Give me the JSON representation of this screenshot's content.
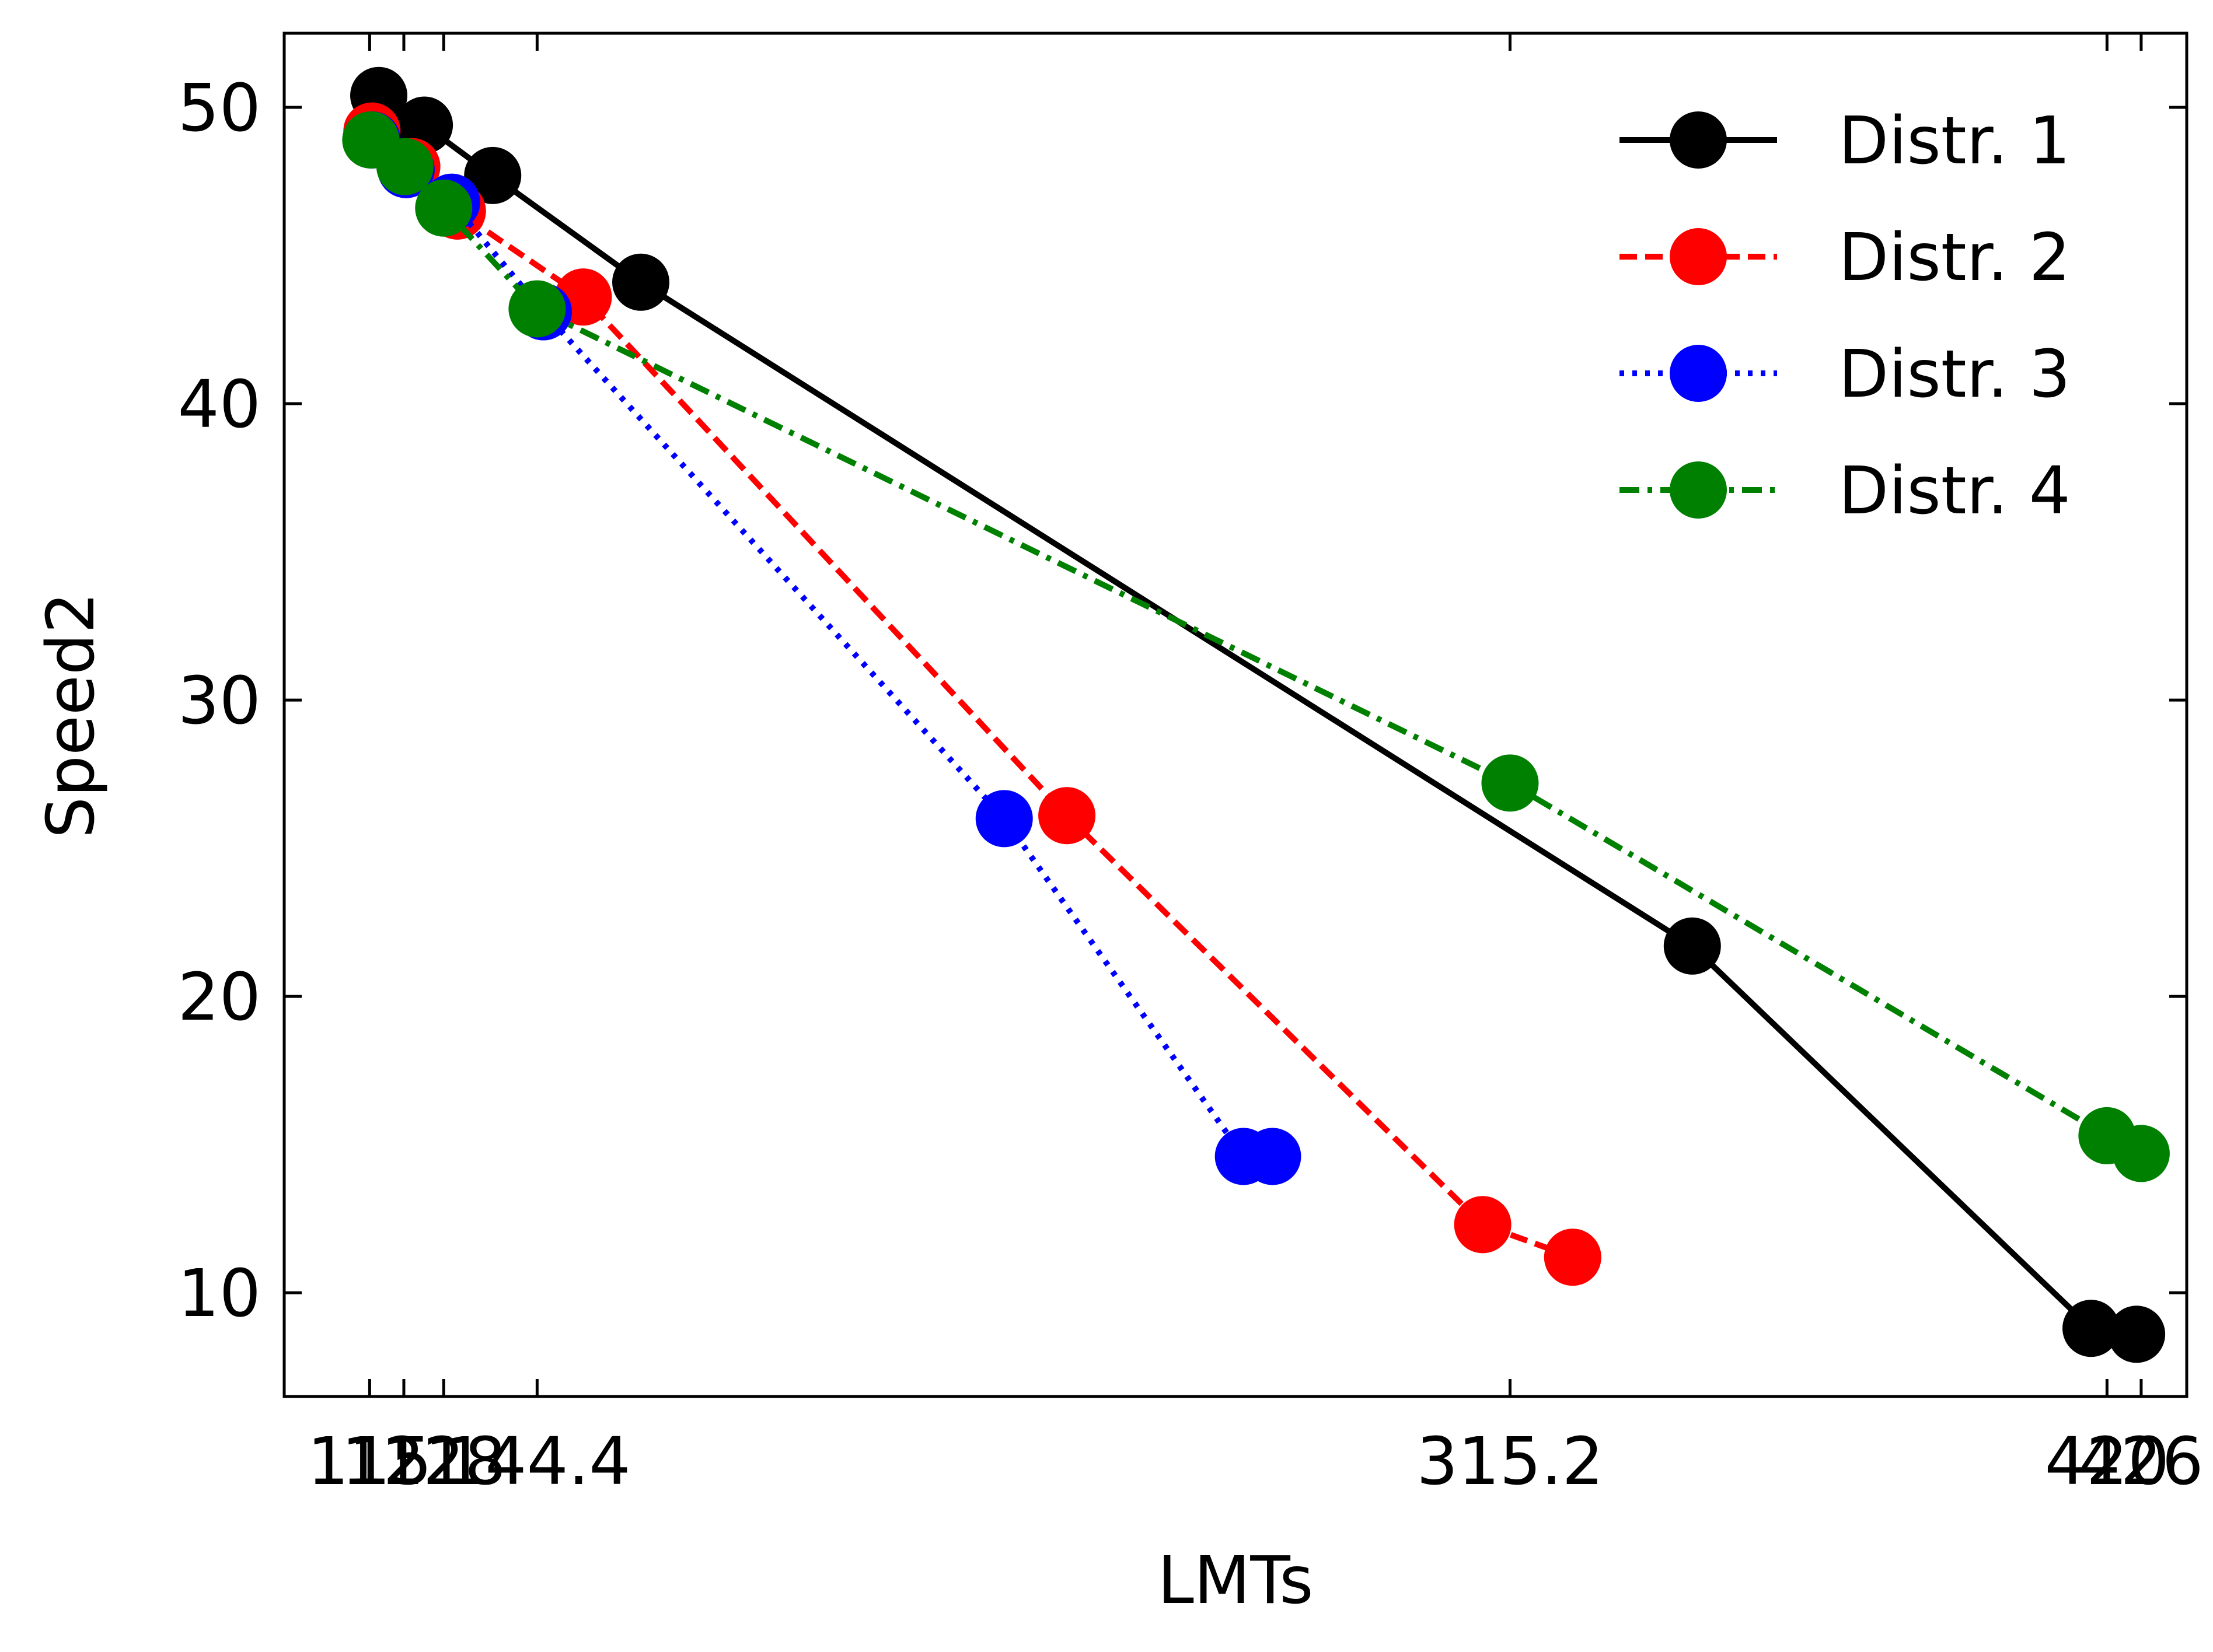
{
  "chart_data": {
    "type": "line",
    "title": "",
    "xlabel": "LMTs",
    "ylabel": "Speed2",
    "xlim": [
      100,
      434
    ],
    "ylim": [
      6.5,
      52.5
    ],
    "x_ticks": [
      115,
      121,
      128,
      144.4,
      315.2,
      420,
      426
    ],
    "x_tick_labels": [
      "115",
      "121",
      "128",
      "144.4",
      "315.2",
      "420",
      "426"
    ],
    "y_ticks": [
      10,
      20,
      30,
      40,
      50
    ],
    "y_tick_labels": [
      "10",
      "20",
      "30",
      "40",
      "50"
    ],
    "legend_position": "top-right",
    "grid": false,
    "series": [
      {
        "name": "Distr. 1",
        "color": "#000000",
        "dash": "solid",
        "points": [
          [
            116.6,
            50.4
          ],
          [
            124.6,
            49.4
          ],
          [
            136.6,
            47.7
          ],
          [
            162.6,
            44.1
          ],
          [
            347.2,
            21.7
          ],
          [
            417.2,
            8.8
          ],
          [
            425.2,
            8.6
          ]
        ]
      },
      {
        "name": "Distr. 2",
        "color": "#ff0000",
        "dash": "dashed",
        "points": [
          [
            115.4,
            49.2
          ],
          [
            122.4,
            48.0
          ],
          [
            130.4,
            46.5
          ],
          [
            152.5,
            43.6
          ],
          [
            237.4,
            26.1
          ],
          [
            310.4,
            12.3
          ],
          [
            326.2,
            11.2
          ]
        ]
      },
      {
        "name": "Distr. 3",
        "color": "#0000ff",
        "dash": "dotted",
        "points": [
          [
            115.4,
            48.9
          ],
          [
            121.4,
            47.9
          ],
          [
            129.4,
            46.8
          ],
          [
            145.5,
            43.1
          ],
          [
            226.4,
            26.0
          ],
          [
            268.4,
            14.6
          ],
          [
            273.5,
            14.6
          ]
        ]
      },
      {
        "name": "Distr. 4",
        "color": "#008000",
        "dash": "dashdot",
        "points": [
          [
            115.2,
            48.9
          ],
          [
            121.2,
            48.0
          ],
          [
            128.0,
            46.6
          ],
          [
            144.4,
            43.2
          ],
          [
            315.2,
            27.2
          ],
          [
            420.0,
            15.3
          ],
          [
            426.0,
            14.7
          ]
        ]
      }
    ]
  }
}
